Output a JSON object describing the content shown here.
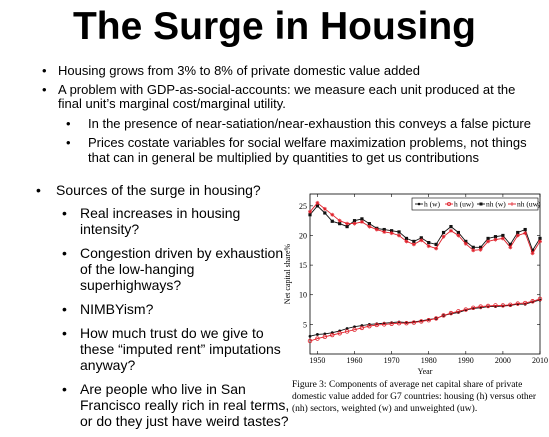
{
  "slide": {
    "title": "The Surge in Housing"
  },
  "top_bullets": [
    {
      "text": "Housing grows from 3% to 8% of private domestic value added",
      "sub": []
    },
    {
      "text": "A problem with GDP-as-social-accounts: we measure each unit produced at the final unit’s marginal cost/marginal utility.",
      "sub": [
        "In the presence of near-satiation/near-exhaustion this conveys a false picture",
        "Prices costate variables for social welfare maximization problems, not things that can in general be multiplied by quantities to get us contributions"
      ]
    }
  ],
  "left_bullets": {
    "heading": "Sources of the surge in housing?",
    "items": [
      "Real increases in housing intensity?",
      "Congestion driven by exhaustion of the low-hanging superhighways?",
      "NIMBYism?",
      "How much trust do we give to these “imputed rent” imputations anyway?",
      "Are people who live in San Francisco really rich in real terms, or do they just have weird tastes?"
    ]
  },
  "figure_caption": "Figure 3: Components of average net capital share of private domestic value added for G7 countries: housing (h) versus other (nh) sectors, weighted (w) and unweighted (uw).",
  "chart_data": {
    "type": "line",
    "xlabel": "Year",
    "ylabel": "Net capital share%",
    "xlim": [
      1948,
      2010
    ],
    "ylim": [
      0,
      27
    ],
    "x_ticks": [
      1950,
      1960,
      1970,
      1980,
      1990,
      2000,
      2010
    ],
    "y_ticks": [
      5,
      10,
      15,
      20,
      25
    ],
    "grid": false,
    "legend_position": "top-right",
    "colors": {
      "black": "#111111",
      "red": "#e0202a"
    },
    "series": [
      {
        "name": "h (w)",
        "color": "#111111",
        "marker": "dot",
        "x": [
          1948,
          1950,
          1952,
          1954,
          1956,
          1958,
          1960,
          1962,
          1964,
          1966,
          1968,
          1970,
          1972,
          1974,
          1976,
          1978,
          1980,
          1982,
          1984,
          1986,
          1988,
          1990,
          1992,
          1994,
          1996,
          1998,
          2000,
          2002,
          2004,
          2006,
          2008,
          2010
        ],
        "y": [
          3.0,
          3.3,
          3.4,
          3.6,
          3.9,
          4.3,
          4.6,
          4.8,
          5.0,
          5.1,
          5.2,
          5.3,
          5.4,
          5.3,
          5.4,
          5.6,
          5.8,
          6.0,
          6.5,
          6.8,
          7.0,
          7.4,
          7.7,
          7.8,
          8.0,
          8.0,
          8.1,
          8.2,
          8.4,
          8.4,
          8.8,
          9.1
        ]
      },
      {
        "name": "h (uw)",
        "color": "#e0202a",
        "marker": "circle",
        "x": [
          1948,
          1950,
          1952,
          1954,
          1956,
          1958,
          1960,
          1962,
          1964,
          1966,
          1968,
          1970,
          1972,
          1974,
          1976,
          1978,
          1980,
          1982,
          1984,
          1986,
          1988,
          1990,
          1992,
          1994,
          1996,
          1998,
          2000,
          2002,
          2004,
          2006,
          2008,
          2010
        ],
        "y": [
          2.2,
          2.6,
          2.9,
          3.2,
          3.5,
          3.8,
          4.1,
          4.4,
          4.7,
          4.9,
          5.0,
          5.1,
          5.2,
          5.2,
          5.3,
          5.5,
          5.7,
          6.0,
          6.5,
          6.9,
          7.2,
          7.5,
          7.8,
          8.0,
          8.1,
          8.2,
          8.2,
          8.3,
          8.5,
          8.6,
          8.9,
          9.3
        ]
      },
      {
        "name": "nh (w)",
        "color": "#111111",
        "marker": "square",
        "x": [
          1948,
          1950,
          1952,
          1954,
          1956,
          1958,
          1960,
          1962,
          1964,
          1966,
          1968,
          1970,
          1972,
          1974,
          1976,
          1978,
          1980,
          1982,
          1984,
          1986,
          1988,
          1990,
          1992,
          1994,
          1996,
          1998,
          2000,
          2002,
          2004,
          2006,
          2008,
          2010
        ],
        "y": [
          23.5,
          25.0,
          23.8,
          22.4,
          22.0,
          21.5,
          22.5,
          22.8,
          22.0,
          21.2,
          21.0,
          20.8,
          20.6,
          19.5,
          19.0,
          19.6,
          18.8,
          18.5,
          20.5,
          21.5,
          20.5,
          19.0,
          18.0,
          18.0,
          19.5,
          19.8,
          20.0,
          18.5,
          20.5,
          21.0,
          17.5,
          19.5
        ]
      },
      {
        "name": "nh (uw)",
        "color": "#e0202a",
        "marker": "star",
        "x": [
          1948,
          1950,
          1952,
          1954,
          1956,
          1958,
          1960,
          1962,
          1964,
          1966,
          1968,
          1970,
          1972,
          1974,
          1976,
          1978,
          1980,
          1982,
          1984,
          1986,
          1988,
          1990,
          1992,
          1994,
          1996,
          1998,
          2000,
          2002,
          2004,
          2006,
          2008,
          2010
        ],
        "y": [
          24.0,
          25.5,
          24.5,
          23.5,
          22.5,
          22.0,
          22.0,
          22.3,
          21.5,
          21.0,
          20.6,
          20.4,
          20.0,
          19.0,
          18.5,
          19.2,
          18.2,
          17.8,
          19.8,
          20.8,
          20.0,
          18.6,
          17.5,
          17.6,
          19.0,
          19.3,
          19.5,
          18.0,
          20.0,
          20.4,
          17.0,
          19.0
        ]
      }
    ]
  }
}
